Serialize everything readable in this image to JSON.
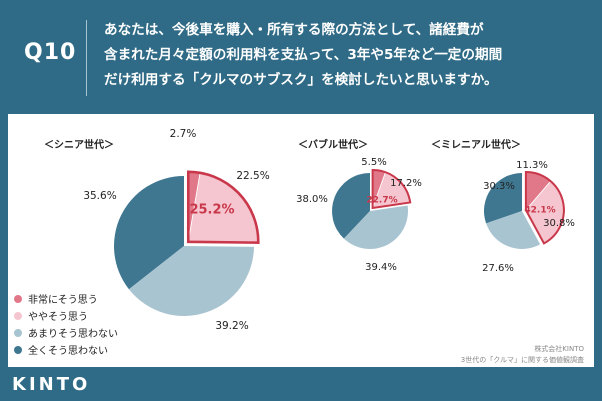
{
  "header": {
    "question_number": "Q10",
    "question_lines": [
      "あなたは、今後車を購入・所有する際の方法として、諸経費が",
      "含まれた月々定額の利用料を支払って、3年や5年など一定の期間",
      "だけ利用する「クルマのサブスク」を検討したいと思いますか。"
    ]
  },
  "chart_data": {
    "type": "pie",
    "categories": [
      "非常にそう思う",
      "ややそう思う",
      "あまりそう思わない",
      "全くそう思わない"
    ],
    "colors": [
      "#e0788a",
      "#f5c6cf",
      "#a9c4d1",
      "#3f7791"
    ],
    "highlight_color": "#c9374a",
    "series": [
      {
        "name": "＜シニア世代＞",
        "values": [
          2.7,
          22.5,
          39.2,
          35.6
        ],
        "highlight": "25.2%"
      },
      {
        "name": "＜バブル世代＞",
        "values": [
          5.5,
          17.2,
          39.4,
          38.0
        ],
        "highlight": "22.7%"
      },
      {
        "name": "＜ミレニアル世代＞",
        "values": [
          11.3,
          30.8,
          27.6,
          30.3
        ],
        "highlight": "42.1%"
      }
    ],
    "value_labels": [
      [
        "2.7%",
        "22.5%",
        "39.2%",
        "35.6%"
      ],
      [
        "5.5%",
        "17.2%",
        "39.4%",
        "38.0%"
      ],
      [
        "11.3%",
        "30.8%",
        "27.6%",
        "30.3%"
      ]
    ]
  },
  "footer": {
    "credit_company": "株式会社KINTO",
    "credit_survey": "3世代の「クルマ」に関する価値観調査",
    "logo": "KINTO"
  }
}
